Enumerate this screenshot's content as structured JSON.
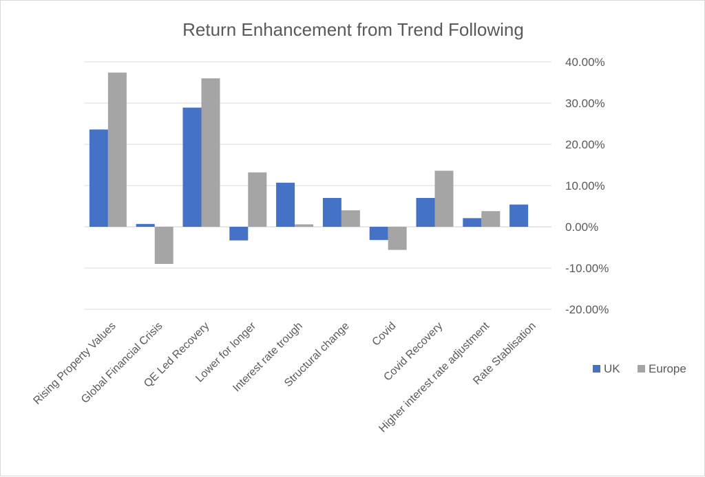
{
  "chart_data": {
    "type": "bar",
    "title": "Return Enhancement from Trend Following",
    "categories": [
      "Rising Property Values",
      "Global Financial Crisis",
      "QE Led Recovery",
      "Lower for longer",
      "Interest rate trough",
      "Structural change",
      "Covid",
      "Covid Recovery",
      "Higher interest rate adjustment",
      "Rate Stablisation"
    ],
    "series": [
      {
        "name": "UK",
        "color": "#4472c4",
        "values": [
          23.6,
          0.7,
          28.9,
          -3.3,
          10.7,
          7.0,
          -3.2,
          7.0,
          2.1,
          5.4
        ]
      },
      {
        "name": "Europe",
        "color": "#a5a5a5",
        "values": [
          37.4,
          -9.0,
          36.0,
          13.2,
          0.6,
          4.0,
          -5.6,
          13.6,
          3.8,
          0
        ]
      }
    ],
    "ylim": [
      -20,
      40
    ],
    "yticks": [
      40,
      30,
      20,
      10,
      0,
      -10,
      -20
    ],
    "ytick_labels": [
      "40.00%",
      "30.00%",
      "20.00%",
      "10.00%",
      "0.00%",
      "-10.00%",
      "-20.00%"
    ],
    "y_axis_side": "right",
    "grid": true,
    "legend_position": "right"
  }
}
